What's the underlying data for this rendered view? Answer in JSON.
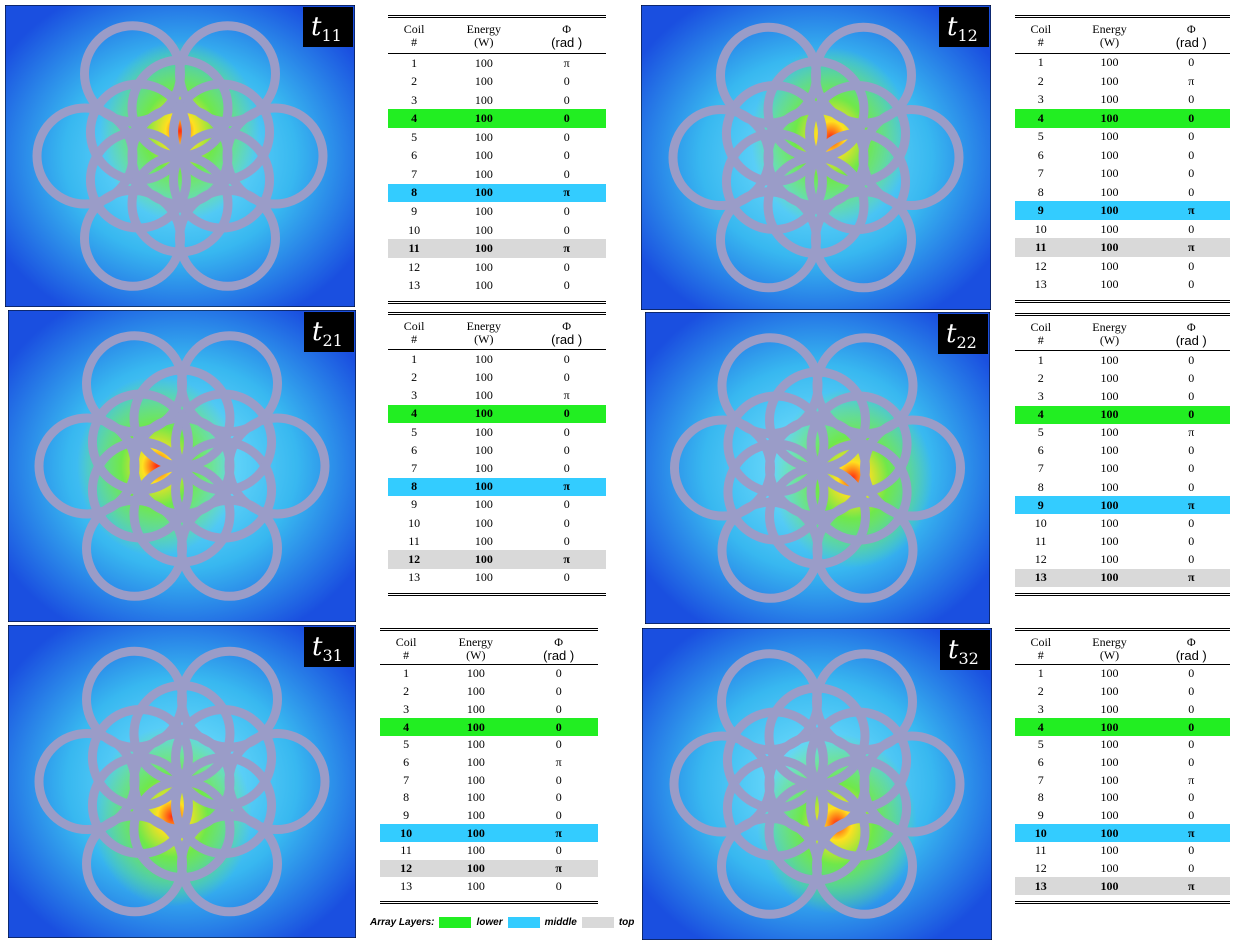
{
  "panels": [
    {
      "label": {
        "base": "t",
        "sub": "11"
      },
      "table": {
        "header": [
          [
            "Coil",
            "#"
          ],
          [
            "Energy",
            "(W)"
          ],
          [
            "Φ",
            "(rad )"
          ]
        ],
        "rows": [
          [
            1,
            100,
            "π"
          ],
          [
            2,
            100,
            "0"
          ],
          [
            3,
            100,
            "0"
          ],
          [
            4,
            100,
            "0"
          ],
          [
            5,
            100,
            "0"
          ],
          [
            6,
            100,
            "0"
          ],
          [
            7,
            100,
            "0"
          ],
          [
            8,
            100,
            "π"
          ],
          [
            9,
            100,
            "0"
          ],
          [
            10,
            100,
            "0"
          ],
          [
            11,
            100,
            "π"
          ],
          [
            12,
            100,
            "0"
          ],
          [
            13,
            100,
            "0"
          ]
        ],
        "highlights": {
          "lower": 4,
          "middle": 8,
          "top": 11
        }
      }
    },
    {
      "label": {
        "base": "t",
        "sub": "12"
      },
      "table": {
        "header": [
          [
            "Coil",
            "#"
          ],
          [
            "Energy",
            "(W)"
          ],
          [
            "Φ",
            "(rad )"
          ]
        ],
        "rows": [
          [
            1,
            100,
            "0"
          ],
          [
            2,
            100,
            "π"
          ],
          [
            3,
            100,
            "0"
          ],
          [
            4,
            100,
            "0"
          ],
          [
            5,
            100,
            "0"
          ],
          [
            6,
            100,
            "0"
          ],
          [
            7,
            100,
            "0"
          ],
          [
            8,
            100,
            "0"
          ],
          [
            9,
            100,
            "π"
          ],
          [
            10,
            100,
            "0"
          ],
          [
            11,
            100,
            "π"
          ],
          [
            12,
            100,
            "0"
          ],
          [
            13,
            100,
            "0"
          ]
        ],
        "highlights": {
          "lower": 4,
          "middle": 9,
          "top": 11
        }
      }
    },
    {
      "label": {
        "base": "t",
        "sub": "21"
      },
      "table": {
        "header": [
          [
            "Coil",
            "#"
          ],
          [
            "Energy",
            "(W)"
          ],
          [
            "Φ",
            "(rad )"
          ]
        ],
        "rows": [
          [
            1,
            100,
            "0"
          ],
          [
            2,
            100,
            "0"
          ],
          [
            3,
            100,
            "π"
          ],
          [
            4,
            100,
            "0"
          ],
          [
            5,
            100,
            "0"
          ],
          [
            6,
            100,
            "0"
          ],
          [
            7,
            100,
            "0"
          ],
          [
            8,
            100,
            "π"
          ],
          [
            9,
            100,
            "0"
          ],
          [
            10,
            100,
            "0"
          ],
          [
            11,
            100,
            "0"
          ],
          [
            12,
            100,
            "π"
          ],
          [
            13,
            100,
            "0"
          ]
        ],
        "highlights": {
          "lower": 4,
          "middle": 8,
          "top": 12
        }
      }
    },
    {
      "label": {
        "base": "t",
        "sub": "22"
      },
      "table": {
        "header": [
          [
            "Coil",
            "#"
          ],
          [
            "Energy",
            "(W)"
          ],
          [
            "Φ",
            "(rad )"
          ]
        ],
        "rows": [
          [
            1,
            100,
            "0"
          ],
          [
            2,
            100,
            "0"
          ],
          [
            3,
            100,
            "0"
          ],
          [
            4,
            100,
            "0"
          ],
          [
            5,
            100,
            "π"
          ],
          [
            6,
            100,
            "0"
          ],
          [
            7,
            100,
            "0"
          ],
          [
            8,
            100,
            "0"
          ],
          [
            9,
            100,
            "π"
          ],
          [
            10,
            100,
            "0"
          ],
          [
            11,
            100,
            "0"
          ],
          [
            12,
            100,
            "0"
          ],
          [
            13,
            100,
            "π"
          ]
        ],
        "highlights": {
          "lower": 4,
          "middle": 9,
          "top": 13
        }
      }
    },
    {
      "label": {
        "base": "t",
        "sub": "31"
      },
      "table": {
        "header": [
          [
            "Coil",
            "#"
          ],
          [
            "Energy",
            "(W)"
          ],
          [
            "Φ",
            "(rad )"
          ]
        ],
        "rows": [
          [
            1,
            100,
            "0"
          ],
          [
            2,
            100,
            "0"
          ],
          [
            3,
            100,
            "0"
          ],
          [
            4,
            100,
            "0"
          ],
          [
            5,
            100,
            "0"
          ],
          [
            6,
            100,
            "π"
          ],
          [
            7,
            100,
            "0"
          ],
          [
            8,
            100,
            "0"
          ],
          [
            9,
            100,
            "0"
          ],
          [
            10,
            100,
            "π"
          ],
          [
            11,
            100,
            "0"
          ],
          [
            12,
            100,
            "π"
          ],
          [
            13,
            100,
            "0"
          ]
        ],
        "highlights": {
          "lower": 4,
          "middle": 10,
          "top": 12
        }
      }
    },
    {
      "label": {
        "base": "t",
        "sub": "32"
      },
      "table": {
        "header": [
          [
            "Coil",
            "#"
          ],
          [
            "Energy",
            "(W)"
          ],
          [
            "Φ",
            "(rad )"
          ]
        ],
        "rows": [
          [
            1,
            100,
            "0"
          ],
          [
            2,
            100,
            "0"
          ],
          [
            3,
            100,
            "0"
          ],
          [
            4,
            100,
            "0"
          ],
          [
            5,
            100,
            "0"
          ],
          [
            6,
            100,
            "0"
          ],
          [
            7,
            100,
            "π"
          ],
          [
            8,
            100,
            "0"
          ],
          [
            9,
            100,
            "0"
          ],
          [
            10,
            100,
            "π"
          ],
          [
            11,
            100,
            "0"
          ],
          [
            12,
            100,
            "0"
          ],
          [
            13,
            100,
            "π"
          ]
        ],
        "highlights": {
          "lower": 4,
          "middle": 10,
          "top": 13
        }
      }
    }
  ],
  "legend": {
    "title": "Array Layers:",
    "items": [
      {
        "name": "lower",
        "color": "#22ee22"
      },
      {
        "name": "middle",
        "color": "#33ccff"
      },
      {
        "name": "top",
        "color": "#d9d9d9"
      }
    ]
  }
}
